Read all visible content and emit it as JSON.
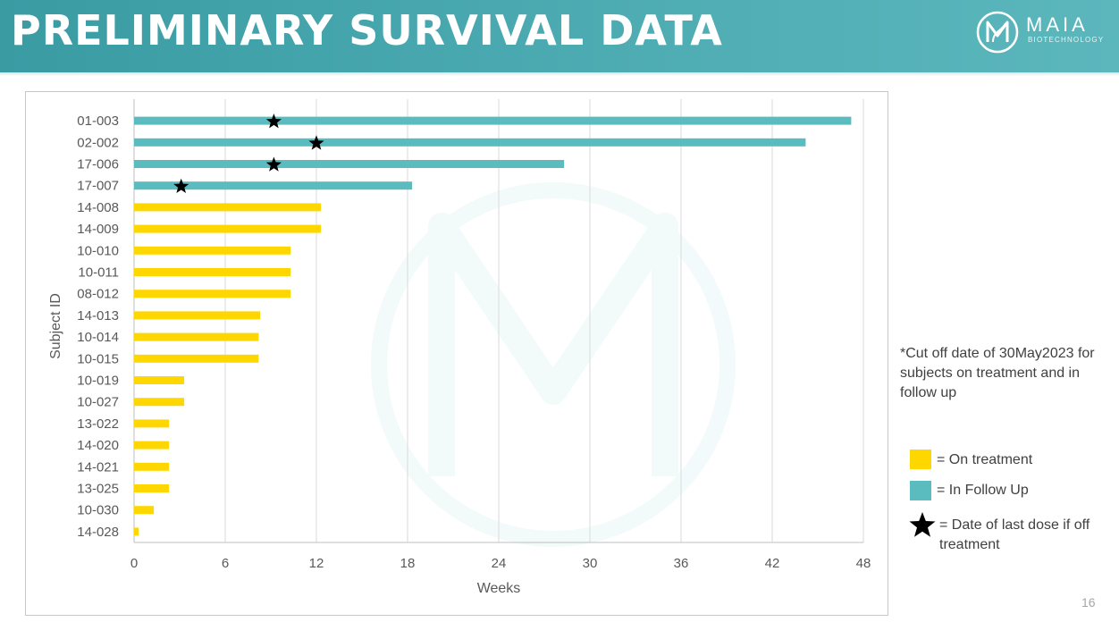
{
  "slide": {
    "title": "PRELIMINARY SURVIVAL DATA",
    "logo_name": "MAIA",
    "logo_sub": "BIOTECHNOLOGY",
    "note": "*Cut off date of 30May2023 for subjects on treatment and in follow up",
    "page_number": "16"
  },
  "colors": {
    "header": "#4aa9b0",
    "on_treatment": "#ffd700",
    "in_follow_up": "#5bbcc0",
    "star": "#000000",
    "grid": "#d9d9d9"
  },
  "legend": [
    {
      "key": "on_treatment",
      "label": "= On treatment",
      "symbol": "swatch"
    },
    {
      "key": "in_follow_up",
      "label": "= In Follow Up",
      "symbol": "swatch"
    },
    {
      "key": "last_dose",
      "label": "= Date of last dose if off treatment",
      "symbol": "star"
    }
  ],
  "chart_data": {
    "type": "bar",
    "orientation": "horizontal",
    "xlabel": "Weeks",
    "ylabel": "Subject ID",
    "xlim": [
      0,
      48
    ],
    "xticks": [
      0,
      6,
      12,
      18,
      24,
      30,
      36,
      42,
      48
    ],
    "grid": "vertical",
    "categories": [
      "01-003",
      "02-002",
      "17-006",
      "17-007",
      "14-008",
      "14-009",
      "10-010",
      "10-011",
      "08-012",
      "14-013",
      "10-014",
      "10-015",
      "10-019",
      "10-027",
      "13-022",
      "14-020",
      "14-021",
      "13-025",
      "10-030",
      "14-028"
    ],
    "values": [
      47.2,
      44.2,
      28.3,
      18.3,
      12.3,
      12.3,
      10.3,
      10.3,
      10.3,
      8.3,
      8.2,
      8.2,
      3.3,
      3.3,
      2.3,
      2.3,
      2.3,
      2.3,
      1.3,
      0.3
    ],
    "status": [
      "in_follow_up",
      "in_follow_up",
      "in_follow_up",
      "in_follow_up",
      "on_treatment",
      "on_treatment",
      "on_treatment",
      "on_treatment",
      "on_treatment",
      "on_treatment",
      "on_treatment",
      "on_treatment",
      "on_treatment",
      "on_treatment",
      "on_treatment",
      "on_treatment",
      "on_treatment",
      "on_treatment",
      "on_treatment",
      "on_treatment"
    ],
    "last_dose": [
      9.2,
      12.0,
      9.2,
      3.1,
      null,
      null,
      null,
      null,
      null,
      null,
      null,
      null,
      null,
      null,
      null,
      null,
      null,
      null,
      null,
      null
    ]
  }
}
